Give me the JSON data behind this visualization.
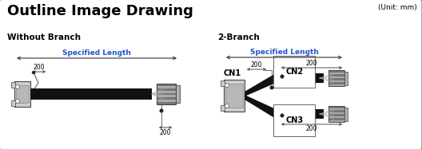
{
  "title": "Outline Image Drawing",
  "unit_text": "(Unit: mm)",
  "subtitle_left": "Without Branch",
  "subtitle_right": "2-Branch",
  "specified_length": "Specified Length",
  "dim_200": "200",
  "cn_labels": [
    "CN1",
    "CN2",
    "CN3"
  ],
  "bg_color": "#d8d8d8",
  "border_color": "#999999",
  "cable_color": "#111111",
  "dim_color": "#2255cc",
  "text_color": "#000000",
  "title_color": "#000000",
  "white": "#ffffff",
  "connector_dark": "#444444",
  "connector_mid": "#888888",
  "connector_light": "#cccccc",
  "connector_face": "#d0d0d0",
  "stripe_dark": "#777777",
  "stripe_light": "#aaaaaa"
}
